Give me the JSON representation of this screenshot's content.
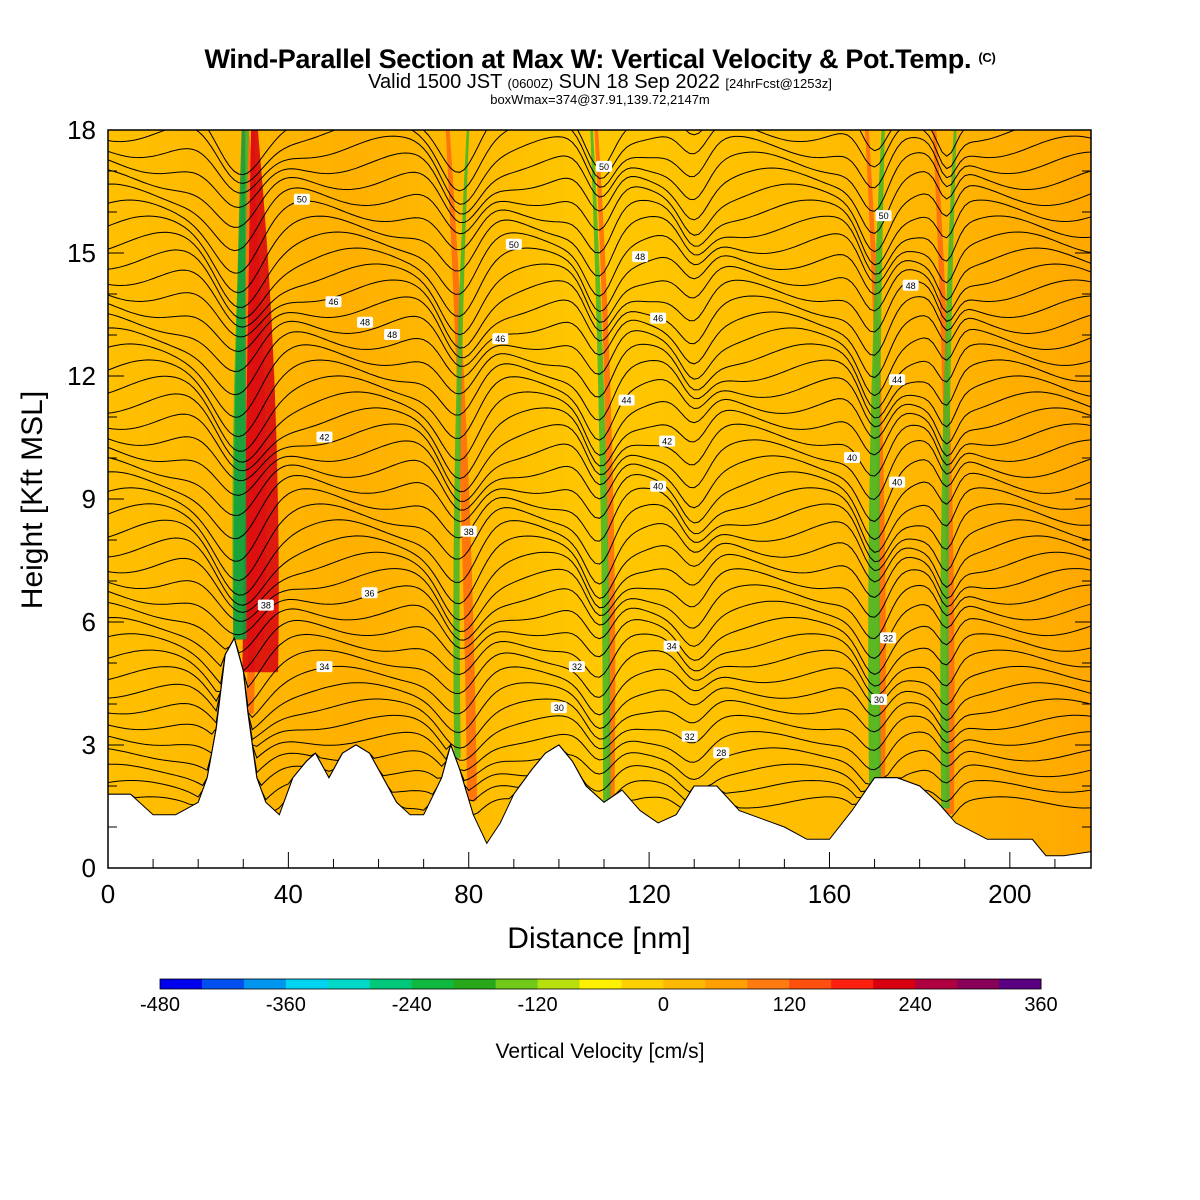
{
  "title": {
    "main": "Wind-Parallel Section at Max W: Vertical Velocity & Pot.Temp.",
    "copyright": "(C)",
    "valid_a": "Valid 1500 JST",
    "valid_utc": "(0600Z)",
    "valid_b": "SUN 18 Sep 2022",
    "fcst": "[24hrFcst@1253z]",
    "box": "boxWmax=374@37.91,139.72,2147m"
  },
  "chart_data": {
    "type": "contour-section",
    "xlabel": "Distance [nm]",
    "ylabel": "Height [Kft MSL]",
    "xlim": [
      0,
      218
    ],
    "ylim": [
      0,
      18
    ],
    "xticks": [
      "0",
      "40",
      "80",
      "120",
      "160",
      "200"
    ],
    "yticks": [
      "0",
      "3",
      "6",
      "9",
      "12",
      "15",
      "18"
    ],
    "colorbar": {
      "label": "Vertical Velocity [cm/s]",
      "tick_labels": [
        "-480",
        "-360",
        "-240",
        "-120",
        "0",
        "120",
        "240",
        "360"
      ],
      "range": [
        -480,
        360
      ],
      "colors": [
        "#0000ee",
        "#0050f0",
        "#0096f0",
        "#00d4f0",
        "#00d8c8",
        "#00c87a",
        "#10b840",
        "#28a818",
        "#70c818",
        "#b8e010",
        "#fff000",
        "#ffd000",
        "#ffb800",
        "#ffa000",
        "#ff7a10",
        "#ff5010",
        "#ff2010",
        "#d80010",
        "#b00040",
        "#880058",
        "#5a0080"
      ]
    },
    "isentrope_labels": [
      "28",
      "30",
      "32",
      "34",
      "36",
      "38",
      "40",
      "42",
      "44",
      "46",
      "48",
      "50"
    ],
    "terrain": [
      [
        0,
        1.8
      ],
      [
        5,
        1.8
      ],
      [
        10,
        1.3
      ],
      [
        15,
        1.3
      ],
      [
        20,
        1.6
      ],
      [
        22,
        2.2
      ],
      [
        24,
        3.4
      ],
      [
        26,
        5.2
      ],
      [
        28,
        5.6
      ],
      [
        30,
        4.8
      ],
      [
        31,
        3.8
      ],
      [
        33,
        2.2
      ],
      [
        35,
        1.6
      ],
      [
        38,
        1.3
      ],
      [
        41,
        2.2
      ],
      [
        44,
        2.6
      ],
      [
        46,
        2.8
      ],
      [
        49,
        2.2
      ],
      [
        52,
        2.8
      ],
      [
        55,
        3.0
      ],
      [
        58,
        2.8
      ],
      [
        61,
        2.2
      ],
      [
        64,
        1.6
      ],
      [
        67,
        1.3
      ],
      [
        70,
        1.3
      ],
      [
        74,
        2.2
      ],
      [
        76,
        3.0
      ],
      [
        78,
        2.4
      ],
      [
        81,
        1.3
      ],
      [
        84,
        0.6
      ],
      [
        87,
        1.1
      ],
      [
        90,
        1.8
      ],
      [
        94,
        2.4
      ],
      [
        97,
        2.8
      ],
      [
        100,
        3.0
      ],
      [
        103,
        2.6
      ],
      [
        106,
        2.0
      ],
      [
        110,
        1.6
      ],
      [
        114,
        1.9
      ],
      [
        118,
        1.4
      ],
      [
        122,
        1.1
      ],
      [
        126,
        1.3
      ],
      [
        130,
        2.0
      ],
      [
        135,
        2.0
      ],
      [
        140,
        1.4
      ],
      [
        145,
        1.2
      ],
      [
        150,
        1.0
      ],
      [
        155,
        0.7
      ],
      [
        160,
        0.7
      ],
      [
        165,
        1.4
      ],
      [
        170,
        2.2
      ],
      [
        175,
        2.2
      ],
      [
        180,
        2.0
      ],
      [
        184,
        1.6
      ],
      [
        188,
        1.1
      ],
      [
        195,
        0.7
      ],
      [
        200,
        0.7
      ],
      [
        205,
        0.7
      ],
      [
        208,
        0.3
      ],
      [
        212,
        0.3
      ],
      [
        218,
        0.4
      ]
    ],
    "upward_bands": [
      [
        28,
        30,
        30,
        25
      ],
      [
        31,
        33,
        32,
        4
      ],
      [
        80,
        79,
        75,
        6
      ],
      [
        111,
        112,
        108,
        4
      ],
      [
        171,
        172,
        168,
        4
      ],
      [
        186,
        187,
        183,
        5
      ]
    ],
    "downward_bands": [
      [
        28,
        27,
        31,
        9
      ],
      [
        77,
        76,
        80,
        4
      ],
      [
        110,
        110,
        107,
        5
      ],
      [
        169,
        168,
        172,
        9
      ],
      [
        185,
        184,
        188,
        6
      ]
    ],
    "max_w": 374
  }
}
